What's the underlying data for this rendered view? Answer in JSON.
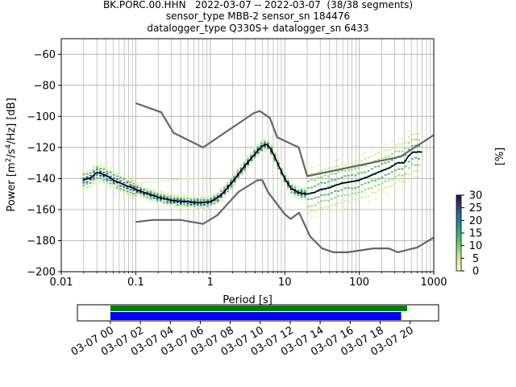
{
  "header": {
    "line1": "BK.PORC.00.HHN   2022-03-07 -- 2022-03-07  (38/38 segments)",
    "line2": "sensor_type MBB-2 sensor_sn 184476",
    "line3": "datalogger_type Q330S+ datalogger_sn 6433"
  },
  "chart_data": [
    {
      "type": "line",
      "title": "BK.PORC.00.HHN   2022-03-07 -- 2022-03-07  (38/38 segments)",
      "xlabel": "Period [s]",
      "ylabel": "Power [m²/s⁴/Hz] [dB]",
      "xscale": "log",
      "xlim": [
        0.01,
        1000
      ],
      "ylim": [
        -200,
        -50
      ],
      "grid": true,
      "x_tick_labels": [
        "0.01",
        "0.1",
        "1",
        "10",
        "100",
        "1000"
      ],
      "x_tick_values": [
        0.01,
        0.1,
        1,
        10,
        100,
        1000
      ],
      "y_tick_labels": [
        "−200",
        "−180",
        "−160",
        "−140",
        "−120",
        "−100",
        "−80",
        "−60"
      ],
      "y_tick_values": [
        -200,
        -180,
        -160,
        -140,
        -120,
        -100,
        -80,
        -60
      ],
      "series": [
        {
          "role": "high-noise-model",
          "color": "#666666",
          "points": [
            [
              0.1,
              -91.5
            ],
            [
              0.22,
              -97.4
            ],
            [
              0.32,
              -110.5
            ],
            [
              0.8,
              -120
            ],
            [
              3.8,
              -98
            ],
            [
              4.6,
              -96.5
            ],
            [
              6.3,
              -101
            ],
            [
              7.9,
              -113.5
            ],
            [
              15.4,
              -120
            ],
            [
              20,
              -138.5
            ],
            [
              354.8,
              -126
            ],
            [
              1000,
              -112
            ]
          ]
        },
        {
          "role": "low-noise-model",
          "color": "#666666",
          "points": [
            [
              0.1,
              -168
            ],
            [
              0.17,
              -166.7
            ],
            [
              0.4,
              -166.7
            ],
            [
              0.8,
              -169.2
            ],
            [
              1.24,
              -163.7
            ],
            [
              2.4,
              -148.6
            ],
            [
              4.3,
              -141.1
            ],
            [
              5,
              -141.1
            ],
            [
              6,
              -149
            ],
            [
              10,
              -163
            ],
            [
              12,
              -166
            ],
            [
              15.6,
              -162
            ],
            [
              21.9,
              -177.3
            ],
            [
              31.6,
              -185
            ],
            [
              45,
              -187.5
            ],
            [
              70,
              -187.5
            ],
            [
              154.5,
              -185
            ],
            [
              250,
              -185
            ],
            [
              328.6,
              -187.5
            ],
            [
              600,
              -184.4
            ],
            [
              1000,
              -178
            ]
          ]
        },
        {
          "role": "median",
          "color": "#000000",
          "points": [
            [
              0.02,
              -141
            ],
            [
              0.025,
              -139.5
            ],
            [
              0.03,
              -136
            ],
            [
              0.04,
              -138
            ],
            [
              0.05,
              -141
            ],
            [
              0.07,
              -144
            ],
            [
              0.1,
              -147
            ],
            [
              0.15,
              -150
            ],
            [
              0.2,
              -152
            ],
            [
              0.3,
              -154
            ],
            [
              0.5,
              -155
            ],
            [
              0.7,
              -155.5
            ],
            [
              1.0,
              -155
            ],
            [
              1.3,
              -152
            ],
            [
              1.6,
              -147.5
            ],
            [
              2.0,
              -142
            ],
            [
              3.0,
              -131
            ],
            [
              4.0,
              -124
            ],
            [
              5.0,
              -119
            ],
            [
              5.8,
              -118
            ],
            [
              6.5,
              -121
            ],
            [
              7.5,
              -127
            ],
            [
              8.5,
              -133
            ],
            [
              10,
              -140
            ],
            [
              12,
              -146
            ],
            [
              15,
              -149
            ],
            [
              20,
              -150
            ],
            [
              25,
              -149
            ],
            [
              30,
              -147
            ],
            [
              40,
              -146
            ],
            [
              50,
              -144
            ],
            [
              60,
              -143
            ],
            [
              80,
              -142
            ],
            [
              100,
              -141
            ],
            [
              130,
              -139
            ],
            [
              160,
              -137
            ],
            [
              200,
              -135
            ],
            [
              260,
              -133
            ],
            [
              320,
              -130
            ],
            [
              400,
              -130
            ],
            [
              450,
              -126
            ],
            [
              520,
              -123
            ],
            [
              700,
              -123
            ]
          ]
        }
      ],
      "colorbar": {
        "label": "[%]",
        "min": 0,
        "max": 30,
        "tick_labels": [
          "0",
          "5",
          "10",
          "15",
          "20",
          "25",
          "30"
        ],
        "tick_values": [
          0,
          5,
          10,
          15,
          20,
          25,
          30
        ]
      }
    },
    {
      "type": "timeline",
      "x_tick_labels": [
        "03-07 00",
        "03-07 02",
        "03-07 04",
        "03-07 06",
        "03-07 08",
        "03-07 10",
        "03-07 12",
        "03-07 14",
        "03-07 16",
        "03-07 18",
        "03-07 20"
      ],
      "x_tick_hours": [
        0,
        2,
        4,
        6,
        8,
        10,
        12,
        14,
        16,
        18,
        20
      ],
      "xlim_hours": [
        -2.2,
        21.9
      ],
      "bars": [
        {
          "color": "#008000",
          "start_hour": 0,
          "end_hour": 19.8
        },
        {
          "color": "#0000ff",
          "start_hour": 0,
          "end_hour": 19.4
        }
      ]
    }
  ]
}
